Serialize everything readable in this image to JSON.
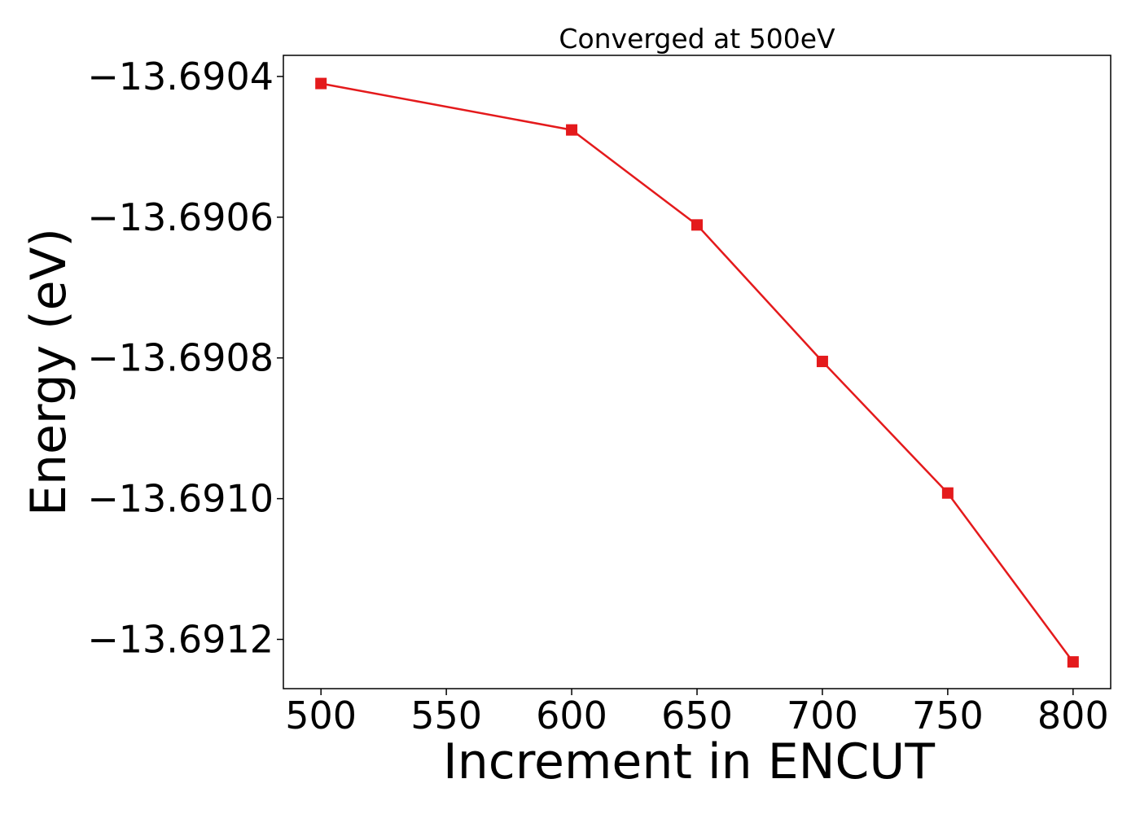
{
  "chart_data": {
    "type": "line",
    "title": "Converged at 500eV",
    "xlabel": "Increment in ENCUT",
    "ylabel": "Energy (eV)",
    "x": [
      500,
      600,
      650,
      700,
      750,
      800
    ],
    "series": [
      {
        "values": [
          -13.69041,
          -13.690476,
          -13.690611,
          -13.690805,
          -13.690992,
          -13.691232
        ],
        "color": "#e41a1c",
        "marker": "square"
      }
    ],
    "xlim": [
      485,
      815
    ],
    "ylim": [
      -13.69127,
      -13.69037
    ],
    "xticks": [
      500,
      550,
      600,
      650,
      700,
      750,
      800
    ],
    "xtick_labels": [
      "500",
      "550",
      "600",
      "650",
      "700",
      "750",
      "800"
    ],
    "yticks": [
      -13.6904,
      -13.6906,
      -13.6908,
      -13.691,
      -13.6912
    ],
    "ytick_labels": [
      "−13.6904",
      "−13.6906",
      "−13.6908",
      "−13.6910",
      "−13.6912"
    ],
    "grid": false,
    "legend": "none"
  }
}
